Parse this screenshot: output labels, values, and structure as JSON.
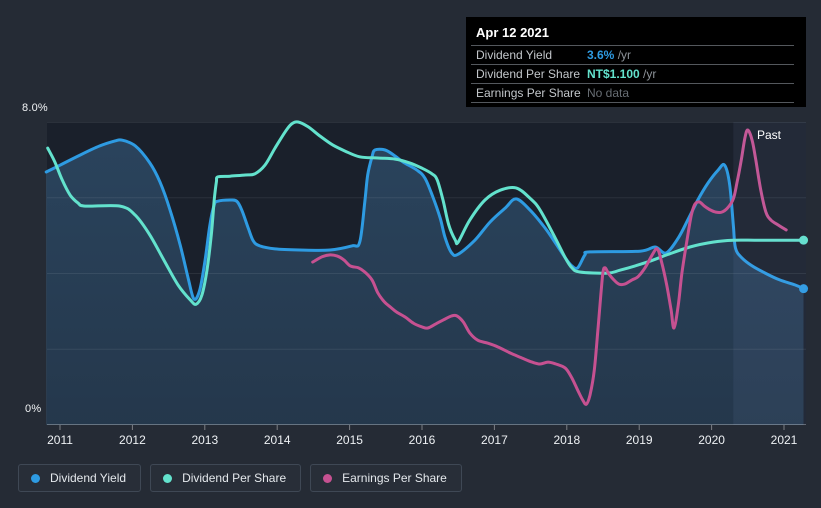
{
  "tooltip": {
    "date": "Apr 12 2021",
    "rows": [
      {
        "label": "Dividend Yield",
        "value": "3.6%",
        "suffix": " /yr"
      },
      {
        "label": "Dividend Per Share",
        "value": "NT$1.100",
        "suffix": " /yr"
      },
      {
        "label": "Earnings Per Share",
        "value": "No data",
        "suffix": ""
      }
    ]
  },
  "axis": {
    "y_top_label": "8.0%",
    "y_bottom_label": "0%"
  },
  "past_label": "Past",
  "legend": [
    {
      "label": "Dividend Yield"
    },
    {
      "label": "Dividend Per Share"
    },
    {
      "label": "Earnings Per Share"
    }
  ],
  "theme": {
    "page_bg": "#252b35",
    "plot_bg": "#1a202b",
    "blue": "#2e9be2",
    "teal": "#63e2cd",
    "pink": "#c65191",
    "tooltip_bg": "#000000"
  },
  "chart_data": {
    "type": "line",
    "title": "",
    "x_ticks": [
      "2011",
      "2012",
      "2013",
      "2014",
      "2015",
      "2016",
      "2017",
      "2018",
      "2019",
      "2020",
      "2021"
    ],
    "ylim": [
      0,
      8
    ],
    "y_gridline_values": [
      8,
      6,
      4,
      2,
      0
    ],
    "y_top_label": "8.0%",
    "y_bottom_label": "0%",
    "grid": true,
    "legend_position": "bottom-left",
    "past_region_start_year": 2020.3,
    "axis_note": "Dividend Yield read on 0-8% axis; other series drawn on same visual scale (their own scale not shown)",
    "series": [
      {
        "name": "Dividend Yield",
        "color": "#2e9be2",
        "fill": true,
        "end_dot": true,
        "points": [
          [
            2010.81,
            6.68
          ],
          [
            2011.0,
            6.86
          ],
          [
            2011.28,
            7.13
          ],
          [
            2011.55,
            7.37
          ],
          [
            2011.76,
            7.5
          ],
          [
            2011.86,
            7.52
          ],
          [
            2012.04,
            7.37
          ],
          [
            2012.24,
            6.92
          ],
          [
            2012.38,
            6.42
          ],
          [
            2012.52,
            5.68
          ],
          [
            2012.66,
            4.75
          ],
          [
            2012.77,
            3.88
          ],
          [
            2012.85,
            3.33
          ],
          [
            2012.93,
            3.56
          ],
          [
            2013.0,
            4.3
          ],
          [
            2013.07,
            5.28
          ],
          [
            2013.13,
            5.81
          ],
          [
            2013.18,
            5.91
          ],
          [
            2013.35,
            5.94
          ],
          [
            2013.44,
            5.91
          ],
          [
            2013.51,
            5.68
          ],
          [
            2013.6,
            5.2
          ],
          [
            2013.67,
            4.86
          ],
          [
            2013.76,
            4.73
          ],
          [
            2013.97,
            4.65
          ],
          [
            2014.31,
            4.62
          ],
          [
            2014.73,
            4.62
          ],
          [
            2015.03,
            4.73
          ],
          [
            2015.14,
            4.83
          ],
          [
            2015.21,
            5.89
          ],
          [
            2015.25,
            6.6
          ],
          [
            2015.31,
            7.08
          ],
          [
            2015.35,
            7.26
          ],
          [
            2015.49,
            7.26
          ],
          [
            2015.63,
            7.1
          ],
          [
            2015.74,
            6.94
          ],
          [
            2015.93,
            6.73
          ],
          [
            2016.04,
            6.52
          ],
          [
            2016.15,
            6.02
          ],
          [
            2016.25,
            5.47
          ],
          [
            2016.32,
            4.94
          ],
          [
            2016.41,
            4.54
          ],
          [
            2016.5,
            4.51
          ],
          [
            2016.73,
            4.88
          ],
          [
            2016.94,
            5.36
          ],
          [
            2017.15,
            5.73
          ],
          [
            2017.3,
            5.97
          ],
          [
            2017.49,
            5.68
          ],
          [
            2017.7,
            5.2
          ],
          [
            2017.88,
            4.7
          ],
          [
            2017.98,
            4.41
          ],
          [
            2018.07,
            4.2
          ],
          [
            2018.15,
            4.15
          ],
          [
            2018.25,
            4.49
          ],
          [
            2018.32,
            4.57
          ],
          [
            2019.01,
            4.59
          ],
          [
            2019.22,
            4.7
          ],
          [
            2019.37,
            4.54
          ],
          [
            2019.54,
            4.94
          ],
          [
            2019.67,
            5.41
          ],
          [
            2019.81,
            5.94
          ],
          [
            2019.95,
            6.39
          ],
          [
            2020.09,
            6.73
          ],
          [
            2020.18,
            6.86
          ],
          [
            2020.25,
            6.34
          ],
          [
            2020.3,
            5.28
          ],
          [
            2020.33,
            4.67
          ],
          [
            2020.42,
            4.41
          ],
          [
            2020.56,
            4.2
          ],
          [
            2020.74,
            4.01
          ],
          [
            2020.94,
            3.83
          ],
          [
            2021.15,
            3.7
          ],
          [
            2021.27,
            3.6
          ]
        ]
      },
      {
        "name": "Dividend Per Share",
        "color": "#63e2cd",
        "fill": false,
        "end_dot": true,
        "points": [
          [
            2010.83,
            7.31
          ],
          [
            2010.93,
            6.94
          ],
          [
            2011.03,
            6.47
          ],
          [
            2011.14,
            6.07
          ],
          [
            2011.25,
            5.86
          ],
          [
            2011.35,
            5.78
          ],
          [
            2011.83,
            5.78
          ],
          [
            2012.04,
            5.54
          ],
          [
            2012.24,
            5.02
          ],
          [
            2012.45,
            4.3
          ],
          [
            2012.63,
            3.7
          ],
          [
            2012.8,
            3.3
          ],
          [
            2012.88,
            3.19
          ],
          [
            2012.96,
            3.43
          ],
          [
            2013.03,
            4.09
          ],
          [
            2013.09,
            5.02
          ],
          [
            2013.13,
            5.94
          ],
          [
            2013.16,
            6.42
          ],
          [
            2013.18,
            6.55
          ],
          [
            2013.35,
            6.57
          ],
          [
            2013.56,
            6.6
          ],
          [
            2013.69,
            6.63
          ],
          [
            2013.83,
            6.86
          ],
          [
            2013.97,
            7.31
          ],
          [
            2014.11,
            7.74
          ],
          [
            2014.2,
            7.95
          ],
          [
            2014.29,
            8.0
          ],
          [
            2014.43,
            7.87
          ],
          [
            2014.59,
            7.63
          ],
          [
            2014.77,
            7.39
          ],
          [
            2014.94,
            7.23
          ],
          [
            2015.14,
            7.08
          ],
          [
            2015.39,
            7.05
          ],
          [
            2015.63,
            7.02
          ],
          [
            2015.83,
            6.92
          ],
          [
            2016.0,
            6.78
          ],
          [
            2016.14,
            6.63
          ],
          [
            2016.21,
            6.47
          ],
          [
            2016.29,
            5.94
          ],
          [
            2016.37,
            5.28
          ],
          [
            2016.46,
            4.88
          ],
          [
            2016.5,
            4.83
          ],
          [
            2016.66,
            5.41
          ],
          [
            2016.87,
            5.94
          ],
          [
            2017.08,
            6.2
          ],
          [
            2017.3,
            6.26
          ],
          [
            2017.49,
            5.99
          ],
          [
            2017.63,
            5.68
          ],
          [
            2017.84,
            4.94
          ],
          [
            2017.98,
            4.41
          ],
          [
            2018.07,
            4.15
          ],
          [
            2018.18,
            4.04
          ],
          [
            2018.56,
            4.01
          ],
          [
            2018.74,
            4.09
          ],
          [
            2019.11,
            4.3
          ],
          [
            2019.38,
            4.49
          ],
          [
            2019.7,
            4.7
          ],
          [
            2020.02,
            4.83
          ],
          [
            2020.3,
            4.88
          ],
          [
            2020.61,
            4.88
          ],
          [
            2020.94,
            4.88
          ],
          [
            2021.27,
            4.88
          ]
        ]
      },
      {
        "name": "Earnings Per Share",
        "color": "#c65191",
        "fill": false,
        "end_dot": false,
        "points": [
          [
            2014.49,
            4.3
          ],
          [
            2014.62,
            4.44
          ],
          [
            2014.73,
            4.49
          ],
          [
            2014.83,
            4.46
          ],
          [
            2014.92,
            4.36
          ],
          [
            2015.01,
            4.2
          ],
          [
            2015.12,
            4.15
          ],
          [
            2015.21,
            4.04
          ],
          [
            2015.31,
            3.83
          ],
          [
            2015.39,
            3.49
          ],
          [
            2015.48,
            3.25
          ],
          [
            2015.56,
            3.12
          ],
          [
            2015.65,
            2.98
          ],
          [
            2015.77,
            2.85
          ],
          [
            2015.88,
            2.69
          ],
          [
            2016.0,
            2.59
          ],
          [
            2016.08,
            2.56
          ],
          [
            2016.19,
            2.67
          ],
          [
            2016.32,
            2.8
          ],
          [
            2016.41,
            2.88
          ],
          [
            2016.48,
            2.88
          ],
          [
            2016.57,
            2.72
          ],
          [
            2016.66,
            2.43
          ],
          [
            2016.77,
            2.24
          ],
          [
            2016.91,
            2.16
          ],
          [
            2017.05,
            2.06
          ],
          [
            2017.22,
            1.9
          ],
          [
            2017.38,
            1.77
          ],
          [
            2017.52,
            1.66
          ],
          [
            2017.63,
            1.61
          ],
          [
            2017.74,
            1.66
          ],
          [
            2017.85,
            1.61
          ],
          [
            2017.98,
            1.5
          ],
          [
            2018.07,
            1.24
          ],
          [
            2018.15,
            0.92
          ],
          [
            2018.22,
            0.66
          ],
          [
            2018.27,
            0.55
          ],
          [
            2018.32,
            0.79
          ],
          [
            2018.38,
            1.45
          ],
          [
            2018.43,
            2.51
          ],
          [
            2018.47,
            3.43
          ],
          [
            2018.5,
            4.04
          ],
          [
            2018.53,
            4.15
          ],
          [
            2018.58,
            3.99
          ],
          [
            2018.65,
            3.83
          ],
          [
            2018.72,
            3.72
          ],
          [
            2018.8,
            3.72
          ],
          [
            2018.9,
            3.83
          ],
          [
            2018.98,
            3.91
          ],
          [
            2019.08,
            4.15
          ],
          [
            2019.18,
            4.49
          ],
          [
            2019.25,
            4.65
          ],
          [
            2019.31,
            4.3
          ],
          [
            2019.38,
            3.7
          ],
          [
            2019.44,
            3.04
          ],
          [
            2019.48,
            2.56
          ],
          [
            2019.54,
            3.17
          ],
          [
            2019.59,
            4.01
          ],
          [
            2019.66,
            4.88
          ],
          [
            2019.72,
            5.54
          ],
          [
            2019.77,
            5.83
          ],
          [
            2019.83,
            5.89
          ],
          [
            2019.9,
            5.78
          ],
          [
            2019.98,
            5.68
          ],
          [
            2020.06,
            5.62
          ],
          [
            2020.14,
            5.62
          ],
          [
            2020.22,
            5.73
          ],
          [
            2020.3,
            5.97
          ],
          [
            2020.35,
            6.39
          ],
          [
            2020.41,
            7.0
          ],
          [
            2020.46,
            7.58
          ],
          [
            2020.5,
            7.79
          ],
          [
            2020.56,
            7.52
          ],
          [
            2020.61,
            7.0
          ],
          [
            2020.68,
            6.2
          ],
          [
            2020.75,
            5.62
          ],
          [
            2020.82,
            5.41
          ],
          [
            2020.92,
            5.28
          ],
          [
            2021.03,
            5.15
          ]
        ]
      }
    ]
  }
}
